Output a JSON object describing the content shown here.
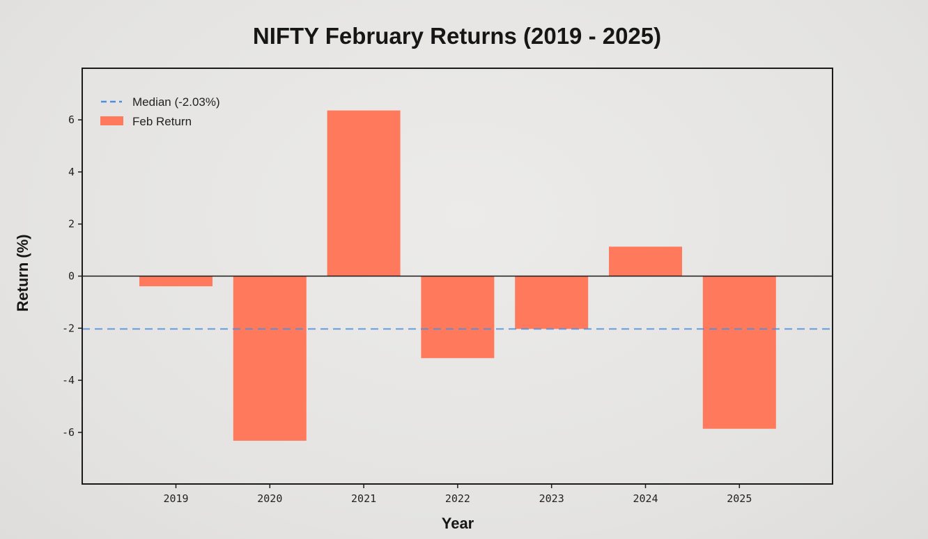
{
  "colors": {
    "bar": "#ff7a5c",
    "median_line": "#4a90e2",
    "frame": "#1a1a1a",
    "zero_line": "#1a1a1a"
  },
  "chart_data": {
    "type": "bar",
    "title": "NIFTY February Returns (2019 - 2025)",
    "xlabel": "Year",
    "ylabel": "Return (%)",
    "categories": [
      "2019",
      "2020",
      "2021",
      "2022",
      "2023",
      "2024",
      "2025"
    ],
    "series": [
      {
        "name": "Feb Return",
        "values": [
          -0.39,
          -6.32,
          6.36,
          -3.15,
          -2.03,
          1.13,
          -5.86
        ]
      }
    ],
    "reference_lines": [
      {
        "name": "Median (-2.03%)",
        "value": -2.03,
        "style": "dashed"
      }
    ],
    "ylim": [
      -8,
      8
    ],
    "yticks": [
      -6,
      -4,
      -2,
      0,
      2,
      4,
      6
    ],
    "yticklabels": [
      "-6",
      "-4",
      "-2",
      "0",
      "2",
      "4",
      "6"
    ],
    "grid": false,
    "legend": {
      "placement": "top-left",
      "entries": [
        "Median (-2.03%)",
        "Feb Return"
      ]
    }
  }
}
